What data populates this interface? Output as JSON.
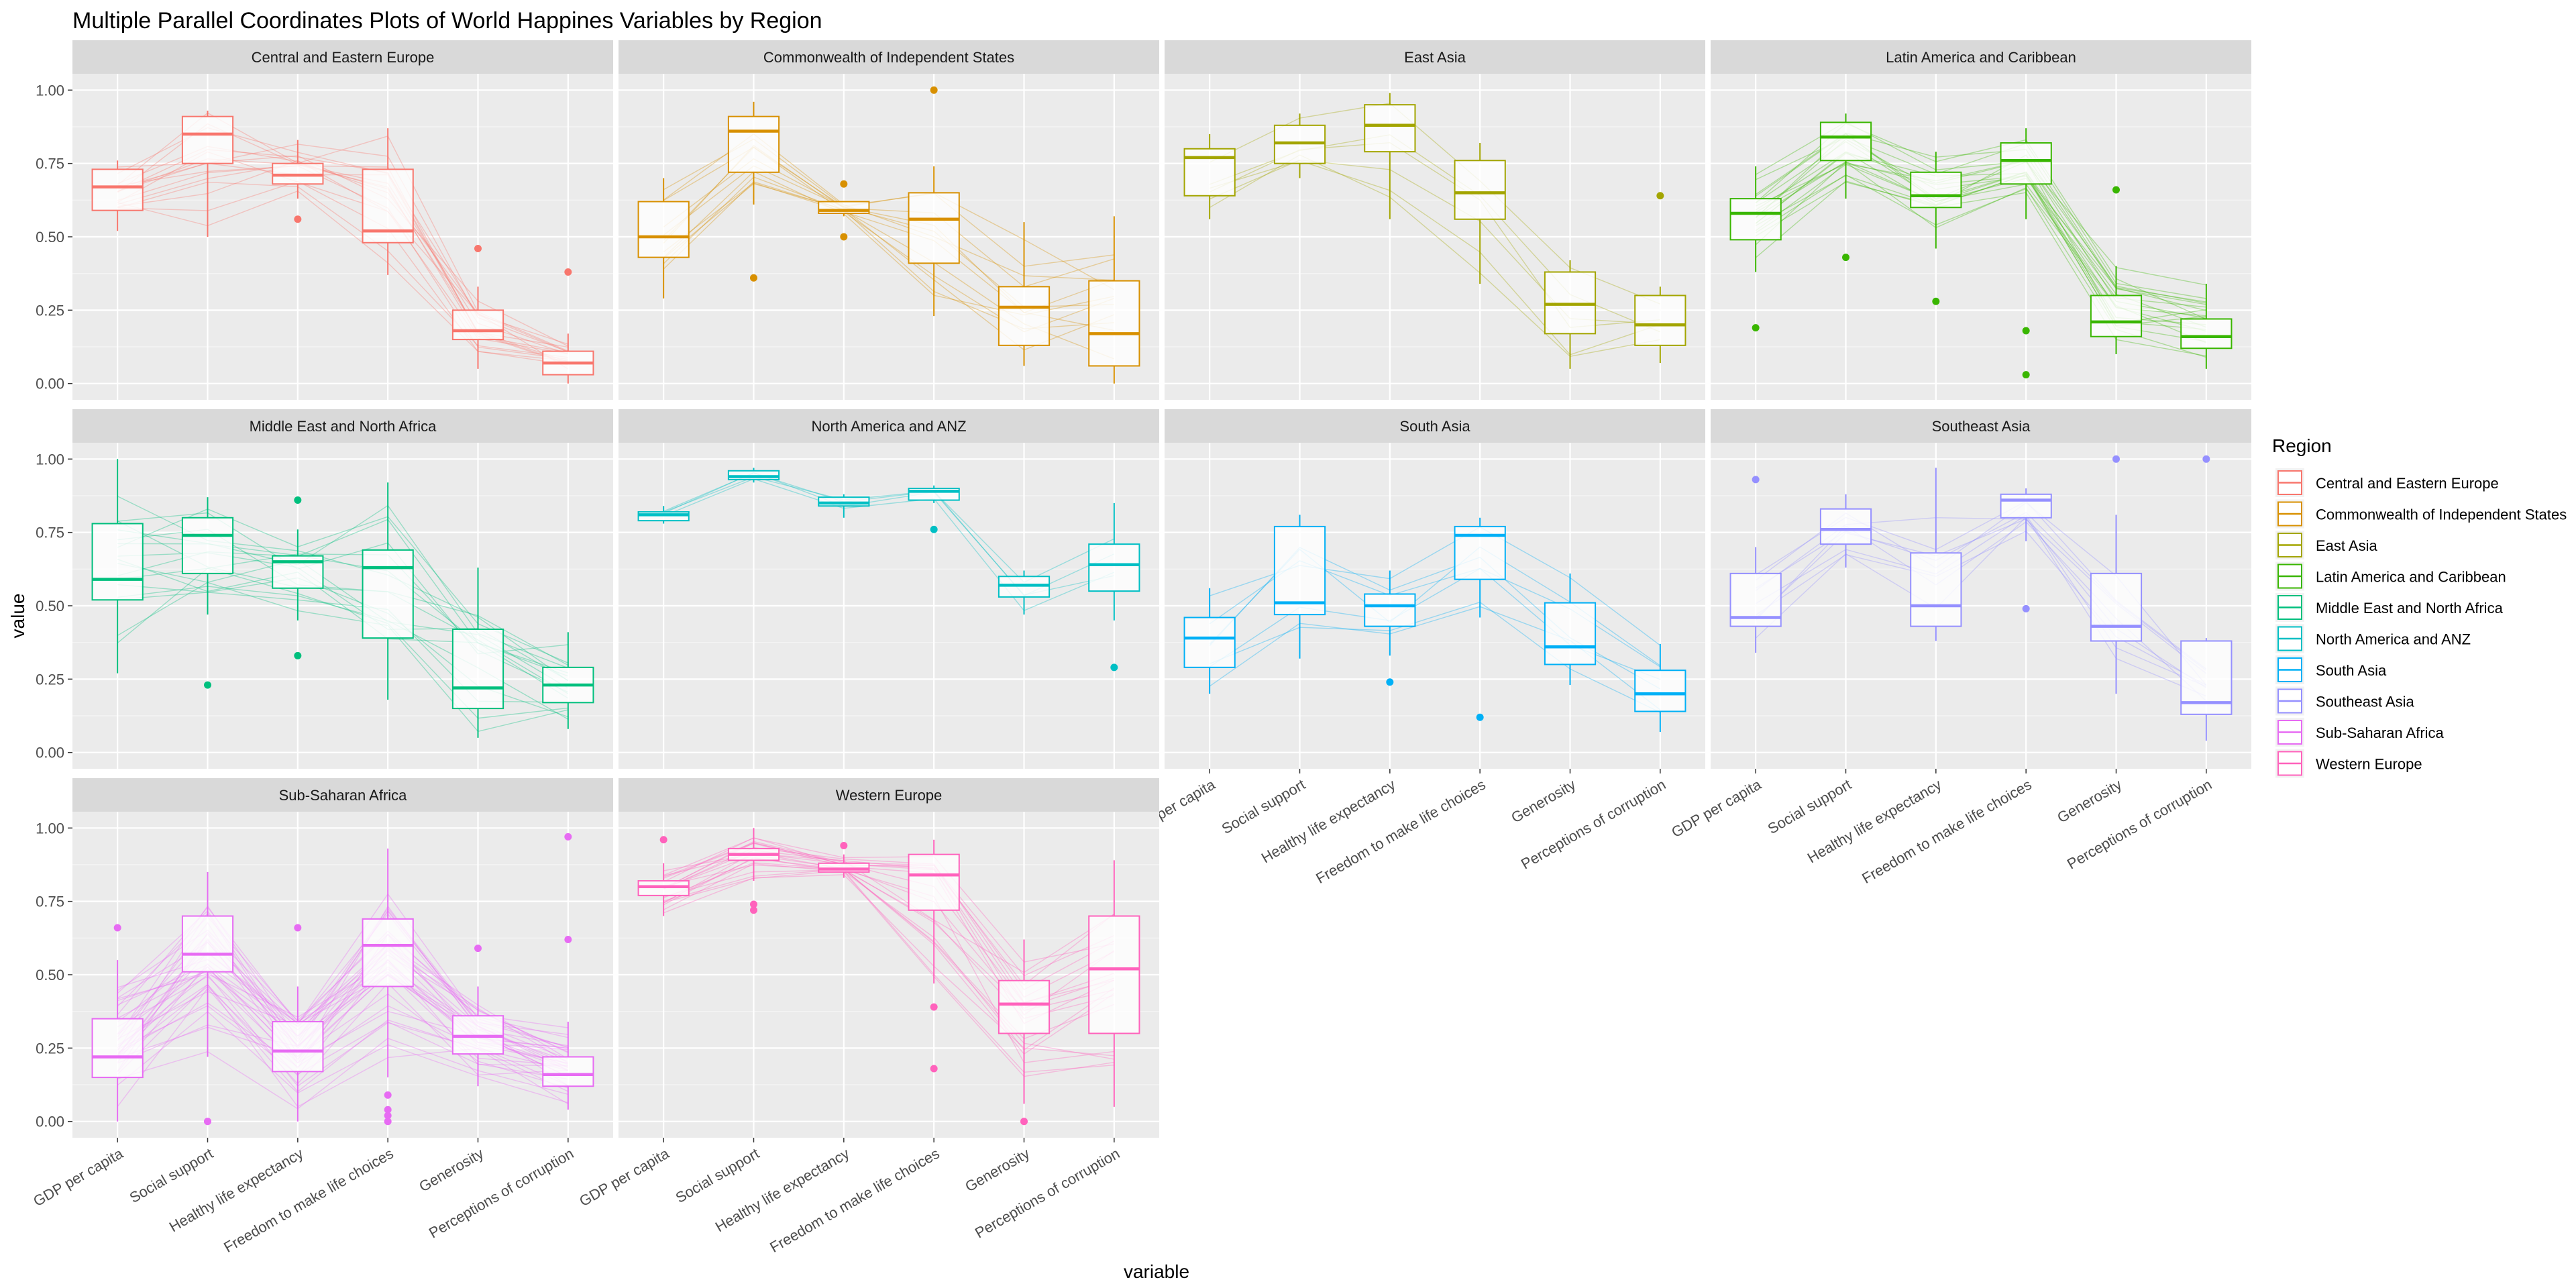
{
  "chart_data": {
    "type": "parallel-coordinates-boxplot",
    "title": "Multiple Parallel Coordinates Plots of World Happines Variables by Region",
    "xlabel": "variable",
    "ylabel": "value",
    "ylim": [
      0,
      1
    ],
    "yticks": [
      "0.00",
      "0.25",
      "0.50",
      "0.75",
      "1.00"
    ],
    "variables": [
      "GDP per capita",
      "Social support",
      "Healthy life expectancy",
      "Freedom to make life choices",
      "Generosity",
      "Perceptions of corruption"
    ],
    "legend": {
      "title": "Region",
      "position": "right"
    },
    "panels": [
      {
        "region": "Central and Eastern Europe",
        "color": "#F8766D",
        "n_lines": 17,
        "boxes": [
          {
            "q1": 0.59,
            "median": 0.67,
            "q3": 0.73,
            "lo": 0.52,
            "hi": 0.76,
            "outliers": []
          },
          {
            "q1": 0.75,
            "median": 0.85,
            "q3": 0.91,
            "lo": 0.5,
            "hi": 0.93,
            "outliers": []
          },
          {
            "q1": 0.68,
            "median": 0.71,
            "q3": 0.75,
            "lo": 0.63,
            "hi": 0.83,
            "outliers": [
              0.56
            ]
          },
          {
            "q1": 0.48,
            "median": 0.52,
            "q3": 0.73,
            "lo": 0.37,
            "hi": 0.87,
            "outliers": []
          },
          {
            "q1": 0.15,
            "median": 0.18,
            "q3": 0.25,
            "lo": 0.05,
            "hi": 0.33,
            "outliers": [
              0.46
            ]
          },
          {
            "q1": 0.03,
            "median": 0.07,
            "q3": 0.11,
            "lo": 0.0,
            "hi": 0.17,
            "outliers": [
              0.38
            ]
          }
        ]
      },
      {
        "region": "Commonwealth of Independent States",
        "color": "#D89000",
        "n_lines": 12,
        "boxes": [
          {
            "q1": 0.43,
            "median": 0.5,
            "q3": 0.62,
            "lo": 0.29,
            "hi": 0.7,
            "outliers": []
          },
          {
            "q1": 0.72,
            "median": 0.86,
            "q3": 0.91,
            "lo": 0.61,
            "hi": 0.96,
            "outliers": [
              0.36
            ]
          },
          {
            "q1": 0.58,
            "median": 0.59,
            "q3": 0.62,
            "lo": 0.57,
            "hi": 0.62,
            "outliers": [
              0.68,
              0.5
            ]
          },
          {
            "q1": 0.41,
            "median": 0.56,
            "q3": 0.65,
            "lo": 0.23,
            "hi": 0.74,
            "outliers": [
              1.0
            ]
          },
          {
            "q1": 0.13,
            "median": 0.26,
            "q3": 0.33,
            "lo": 0.06,
            "hi": 0.55,
            "outliers": []
          },
          {
            "q1": 0.06,
            "median": 0.17,
            "q3": 0.35,
            "lo": 0.0,
            "hi": 0.57,
            "outliers": []
          }
        ]
      },
      {
        "region": "East Asia",
        "color": "#A3A500",
        "n_lines": 6,
        "boxes": [
          {
            "q1": 0.64,
            "median": 0.77,
            "q3": 0.8,
            "lo": 0.56,
            "hi": 0.85,
            "outliers": []
          },
          {
            "q1": 0.75,
            "median": 0.82,
            "q3": 0.88,
            "lo": 0.7,
            "hi": 0.92,
            "outliers": []
          },
          {
            "q1": 0.79,
            "median": 0.88,
            "q3": 0.95,
            "lo": 0.56,
            "hi": 0.99,
            "outliers": []
          },
          {
            "q1": 0.56,
            "median": 0.65,
            "q3": 0.76,
            "lo": 0.34,
            "hi": 0.82,
            "outliers": []
          },
          {
            "q1": 0.17,
            "median": 0.27,
            "q3": 0.38,
            "lo": 0.05,
            "hi": 0.42,
            "outliers": []
          },
          {
            "q1": 0.13,
            "median": 0.2,
            "q3": 0.3,
            "lo": 0.07,
            "hi": 0.33,
            "outliers": [
              0.64
            ]
          }
        ]
      },
      {
        "region": "Latin America and Caribbean",
        "color": "#39B600",
        "n_lines": 20,
        "boxes": [
          {
            "q1": 0.49,
            "median": 0.58,
            "q3": 0.63,
            "lo": 0.38,
            "hi": 0.74,
            "outliers": [
              0.19
            ]
          },
          {
            "q1": 0.76,
            "median": 0.84,
            "q3": 0.89,
            "lo": 0.63,
            "hi": 0.92,
            "outliers": [
              0.43
            ]
          },
          {
            "q1": 0.6,
            "median": 0.64,
            "q3": 0.72,
            "lo": 0.46,
            "hi": 0.79,
            "outliers": [
              0.28
            ]
          },
          {
            "q1": 0.68,
            "median": 0.76,
            "q3": 0.82,
            "lo": 0.56,
            "hi": 0.87,
            "outliers": [
              0.18,
              0.03
            ]
          },
          {
            "q1": 0.16,
            "median": 0.21,
            "q3": 0.3,
            "lo": 0.1,
            "hi": 0.4,
            "outliers": [
              0.66
            ]
          },
          {
            "q1": 0.12,
            "median": 0.16,
            "q3": 0.22,
            "lo": 0.05,
            "hi": 0.34,
            "outliers": []
          }
        ]
      },
      {
        "region": "Middle East and North Africa",
        "color": "#00BF7D",
        "n_lines": 17,
        "boxes": [
          {
            "q1": 0.52,
            "median": 0.59,
            "q3": 0.78,
            "lo": 0.27,
            "hi": 1.0,
            "outliers": []
          },
          {
            "q1": 0.61,
            "median": 0.74,
            "q3": 0.8,
            "lo": 0.47,
            "hi": 0.87,
            "outliers": [
              0.23
            ]
          },
          {
            "q1": 0.56,
            "median": 0.65,
            "q3": 0.67,
            "lo": 0.45,
            "hi": 0.76,
            "outliers": [
              0.86,
              0.33
            ]
          },
          {
            "q1": 0.39,
            "median": 0.63,
            "q3": 0.69,
            "lo": 0.18,
            "hi": 0.92,
            "outliers": []
          },
          {
            "q1": 0.15,
            "median": 0.22,
            "q3": 0.42,
            "lo": 0.05,
            "hi": 0.63,
            "outliers": []
          },
          {
            "q1": 0.17,
            "median": 0.23,
            "q3": 0.29,
            "lo": 0.08,
            "hi": 0.41,
            "outliers": []
          }
        ]
      },
      {
        "region": "North America and ANZ",
        "color": "#00BFC4",
        "n_lines": 4,
        "boxes": [
          {
            "q1": 0.79,
            "median": 0.81,
            "q3": 0.82,
            "lo": 0.78,
            "hi": 0.84,
            "outliers": []
          },
          {
            "q1": 0.93,
            "median": 0.94,
            "q3": 0.96,
            "lo": 0.92,
            "hi": 0.97,
            "outliers": []
          },
          {
            "q1": 0.84,
            "median": 0.85,
            "q3": 0.87,
            "lo": 0.8,
            "hi": 0.88,
            "outliers": []
          },
          {
            "q1": 0.86,
            "median": 0.89,
            "q3": 0.9,
            "lo": 0.85,
            "hi": 0.91,
            "outliers": [
              0.76
            ]
          },
          {
            "q1": 0.53,
            "median": 0.57,
            "q3": 0.6,
            "lo": 0.47,
            "hi": 0.62,
            "outliers": []
          },
          {
            "q1": 0.55,
            "median": 0.64,
            "q3": 0.71,
            "lo": 0.45,
            "hi": 0.85,
            "outliers": [
              0.29
            ]
          }
        ]
      },
      {
        "region": "South Asia",
        "color": "#00B0F6",
        "n_lines": 7,
        "boxes": [
          {
            "q1": 0.29,
            "median": 0.39,
            "q3": 0.46,
            "lo": 0.2,
            "hi": 0.56,
            "outliers": []
          },
          {
            "q1": 0.47,
            "median": 0.51,
            "q3": 0.77,
            "lo": 0.32,
            "hi": 0.81,
            "outliers": []
          },
          {
            "q1": 0.43,
            "median": 0.5,
            "q3": 0.54,
            "lo": 0.33,
            "hi": 0.62,
            "outliers": [
              0.24
            ]
          },
          {
            "q1": 0.59,
            "median": 0.74,
            "q3": 0.77,
            "lo": 0.46,
            "hi": 0.8,
            "outliers": [
              0.12
            ]
          },
          {
            "q1": 0.3,
            "median": 0.36,
            "q3": 0.51,
            "lo": 0.23,
            "hi": 0.61,
            "outliers": []
          },
          {
            "q1": 0.14,
            "median": 0.2,
            "q3": 0.28,
            "lo": 0.07,
            "hi": 0.37,
            "outliers": []
          }
        ]
      },
      {
        "region": "Southeast Asia",
        "color": "#9590FF",
        "n_lines": 9,
        "boxes": [
          {
            "q1": 0.43,
            "median": 0.46,
            "q3": 0.61,
            "lo": 0.34,
            "hi": 0.7,
            "outliers": [
              0.93
            ]
          },
          {
            "q1": 0.71,
            "median": 0.76,
            "q3": 0.83,
            "lo": 0.63,
            "hi": 0.88,
            "outliers": []
          },
          {
            "q1": 0.43,
            "median": 0.5,
            "q3": 0.68,
            "lo": 0.38,
            "hi": 0.97,
            "outliers": []
          },
          {
            "q1": 0.8,
            "median": 0.86,
            "q3": 0.88,
            "lo": 0.72,
            "hi": 0.9,
            "outliers": [
              0.49
            ]
          },
          {
            "q1": 0.38,
            "median": 0.43,
            "q3": 0.61,
            "lo": 0.2,
            "hi": 0.81,
            "outliers": [
              1.0
            ]
          },
          {
            "q1": 0.13,
            "median": 0.17,
            "q3": 0.38,
            "lo": 0.04,
            "hi": 0.39,
            "outliers": [
              1.0
            ]
          }
        ]
      },
      {
        "region": "Sub-Saharan Africa",
        "color": "#E76BF3",
        "n_lines": 36,
        "boxes": [
          {
            "q1": 0.15,
            "median": 0.22,
            "q3": 0.35,
            "lo": 0.0,
            "hi": 0.55,
            "outliers": [
              0.66
            ]
          },
          {
            "q1": 0.51,
            "median": 0.57,
            "q3": 0.7,
            "lo": 0.22,
            "hi": 0.85,
            "outliers": [
              0.0
            ]
          },
          {
            "q1": 0.17,
            "median": 0.24,
            "q3": 0.34,
            "lo": 0.0,
            "hi": 0.46,
            "outliers": [
              0.66
            ]
          },
          {
            "q1": 0.46,
            "median": 0.6,
            "q3": 0.69,
            "lo": 0.15,
            "hi": 0.93,
            "outliers": [
              0.09,
              0.04,
              0.02,
              0.0
            ]
          },
          {
            "q1": 0.23,
            "median": 0.29,
            "q3": 0.36,
            "lo": 0.12,
            "hi": 0.46,
            "outliers": [
              0.59
            ]
          },
          {
            "q1": 0.12,
            "median": 0.16,
            "q3": 0.22,
            "lo": 0.04,
            "hi": 0.34,
            "outliers": [
              0.97,
              0.62
            ]
          }
        ]
      },
      {
        "region": "Western Europe",
        "color": "#FF62BC",
        "n_lines": 21,
        "boxes": [
          {
            "q1": 0.77,
            "median": 0.8,
            "q3": 0.82,
            "lo": 0.7,
            "hi": 0.88,
            "outliers": [
              0.96
            ]
          },
          {
            "q1": 0.89,
            "median": 0.91,
            "q3": 0.93,
            "lo": 0.82,
            "hi": 1.0,
            "outliers": [
              0.74,
              0.72
            ]
          },
          {
            "q1": 0.85,
            "median": 0.86,
            "q3": 0.88,
            "lo": 0.83,
            "hi": 0.91,
            "outliers": [
              0.94
            ]
          },
          {
            "q1": 0.72,
            "median": 0.84,
            "q3": 0.91,
            "lo": 0.47,
            "hi": 0.96,
            "outliers": [
              0.39,
              0.18
            ]
          },
          {
            "q1": 0.3,
            "median": 0.4,
            "q3": 0.48,
            "lo": 0.06,
            "hi": 0.62,
            "outliers": [
              0.0
            ]
          },
          {
            "q1": 0.3,
            "median": 0.52,
            "q3": 0.7,
            "lo": 0.05,
            "hi": 0.89,
            "outliers": []
          }
        ]
      }
    ]
  }
}
